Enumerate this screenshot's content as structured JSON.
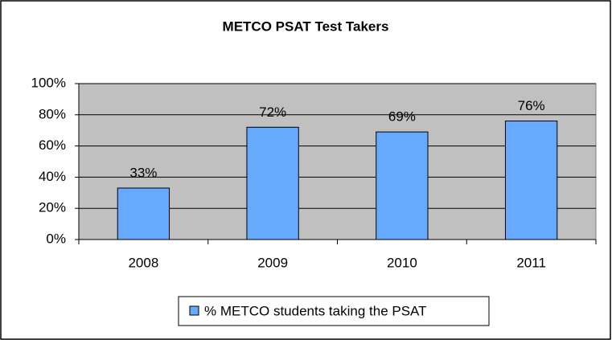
{
  "chart_data": {
    "type": "bar",
    "title": "METCO PSAT Test Takers",
    "categories": [
      "2008",
      "2009",
      "2010",
      "2011"
    ],
    "series": [
      {
        "name": "% METCO students taking the PSAT",
        "color": "#66aaff",
        "values": [
          33,
          72,
          69,
          76
        ],
        "value_labels": [
          "33%",
          "72%",
          "69%",
          "76%"
        ]
      }
    ],
    "ylim": [
      0,
      100
    ],
    "yticks": [
      {
        "value": 0,
        "label": "0%"
      },
      {
        "value": 20,
        "label": "20%"
      },
      {
        "value": 40,
        "label": "40%"
      },
      {
        "value": 60,
        "label": "60%"
      },
      {
        "value": 80,
        "label": "80%"
      },
      {
        "value": 100,
        "label": "100%"
      }
    ],
    "grid": true,
    "legend": "bottom"
  }
}
